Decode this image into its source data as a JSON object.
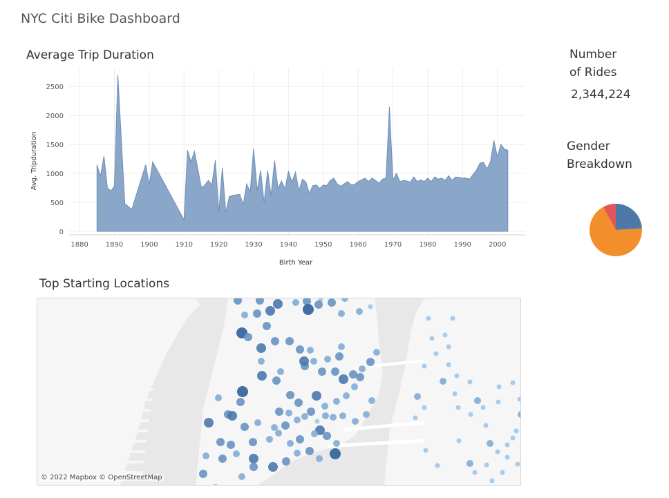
{
  "dashboard": {
    "title": "NYC Citi Bike Dashboard"
  },
  "chart_data": [
    {
      "type": "area",
      "title": "Average Trip Duration",
      "xlabel": "Birth Year",
      "ylabel": "Avg. Tripduration",
      "xlim": [
        1877,
        2008
      ],
      "ylim": [
        -60,
        2800
      ],
      "x_ticks": [
        1880,
        1890,
        1900,
        1910,
        1920,
        1930,
        1940,
        1950,
        1960,
        1970,
        1980,
        1990,
        2000
      ],
      "y_ticks": [
        0,
        500,
        1000,
        1500,
        2000,
        2500
      ],
      "grid": true,
      "color": "#8aa6c8",
      "x": [
        1885,
        1886,
        1887,
        1888,
        1889,
        1890,
        1891,
        1893,
        1895,
        1899,
        1900,
        1901,
        1910,
        1911,
        1912,
        1913,
        1915,
        1916,
        1917,
        1918,
        1919,
        1920,
        1921,
        1922,
        1923,
        1924,
        1926,
        1927,
        1928,
        1929,
        1930,
        1931,
        1932,
        1933,
        1934,
        1935,
        1936,
        1937,
        1938,
        1939,
        1940,
        1941,
        1942,
        1943,
        1944,
        1945,
        1946,
        1947,
        1948,
        1949,
        1950,
        1951,
        1952,
        1953,
        1954,
        1955,
        1956,
        1957,
        1958,
        1959,
        1960,
        1961,
        1962,
        1963,
        1964,
        1965,
        1966,
        1967,
        1968,
        1969,
        1970,
        1971,
        1972,
        1973,
        1974,
        1975,
        1976,
        1977,
        1978,
        1979,
        1980,
        1981,
        1982,
        1983,
        1984,
        1985,
        1986,
        1987,
        1988,
        1989,
        1990,
        1991,
        1992,
        1993,
        1994,
        1995,
        1996,
        1997,
        1998,
        1999,
        2000,
        2001,
        2002,
        2003
      ],
      "values": [
        1150,
        950,
        1300,
        750,
        700,
        780,
        2700,
        480,
        380,
        1150,
        800,
        1200,
        200,
        1400,
        1200,
        1380,
        750,
        800,
        880,
        800,
        1230,
        320,
        1100,
        330,
        600,
        620,
        640,
        460,
        820,
        680,
        1430,
        700,
        1050,
        500,
        1050,
        620,
        1220,
        740,
        870,
        730,
        1040,
        850,
        1020,
        700,
        900,
        850,
        660,
        790,
        800,
        740,
        800,
        790,
        880,
        920,
        820,
        780,
        820,
        860,
        800,
        810,
        860,
        890,
        920,
        860,
        920,
        880,
        830,
        900,
        920,
        2150,
        880,
        1000,
        860,
        880,
        870,
        850,
        940,
        860,
        890,
        860,
        920,
        860,
        940,
        900,
        920,
        880,
        960,
        880,
        940,
        930,
        920,
        920,
        900,
        980,
        1060,
        1180,
        1190,
        1080,
        1200,
        1570,
        1280,
        1500,
        1420,
        1400
      ]
    },
    {
      "type": "pie",
      "title": "Gender Breakdown",
      "slices": [
        {
          "value": 0.24,
          "color": "#4e79a7"
        },
        {
          "value": 0.68,
          "color": "#f28e2b"
        },
        {
          "value": 0.08,
          "color": "#e15759"
        }
      ]
    }
  ],
  "kpi": {
    "rides_label_line1": "Number",
    "rides_label_line2": "of Rides",
    "rides_value": "2,344,224"
  },
  "gender": {
    "title_line1": "Gender",
    "title_line2": "Breakdown"
  },
  "map": {
    "title": "Top Starting Locations",
    "attribution": "© 2022 Mapbox  © OpenStreetMap",
    "colors": {
      "water": "#e8e8e8",
      "land": "#f6f6f6",
      "dot_light": "#9fc6ea",
      "dot_dark": "#2f5f99"
    },
    "stations": [
      {
        "level": 3
      },
      {
        "level": 3
      },
      {
        "level": 4
      },
      {
        "level": 2
      },
      {
        "level": 3
      },
      {
        "level": 1
      },
      {
        "level": 3
      },
      {
        "level": 2
      },
      {
        "level": 2
      },
      {
        "level": 3
      },
      {
        "level": 4
      },
      {
        "level": 5
      },
      {
        "level": 3
      },
      {
        "level": 2
      },
      {
        "level": 2
      },
      {
        "level": 1
      },
      {
        "level": 3
      },
      {
        "level": 5
      },
      {
        "level": 3
      },
      {
        "level": 4
      },
      {
        "level": 3
      },
      {
        "level": 2
      },
      {
        "level": 3
      },
      {
        "level": 2
      },
      {
        "level": 4
      },
      {
        "level": 3
      },
      {
        "level": 5
      },
      {
        "level": 2
      },
      {
        "level": 3
      },
      {
        "level": 4
      },
      {
        "level": 3
      },
      {
        "level": 3
      },
      {
        "level": 4
      },
      {
        "level": 3
      },
      {
        "level": 2
      },
      {
        "level": 4
      },
      {
        "level": 3
      },
      {
        "level": 2
      },
      {
        "level": 3
      },
      {
        "level": 3
      },
      {
        "level": 4
      },
      {
        "level": 2
      },
      {
        "level": 3
      },
      {
        "level": 2
      },
      {
        "level": 2
      },
      {
        "level": 3
      },
      {
        "level": 3
      },
      {
        "level": 4
      },
      {
        "level": 3
      },
      {
        "level": 2
      },
      {
        "level": 3
      },
      {
        "level": 2
      },
      {
        "level": 4
      },
      {
        "level": 3
      },
      {
        "level": 3
      },
      {
        "level": 3
      },
      {
        "level": 2
      },
      {
        "level": 2
      },
      {
        "level": 1
      },
      {
        "level": 4
      },
      {
        "level": 3
      },
      {
        "level": 2
      },
      {
        "level": 5
      },
      {
        "level": 2
      },
      {
        "level": 3
      },
      {
        "level": 2
      },
      {
        "level": 3
      },
      {
        "level": 4
      },
      {
        "level": 3
      },
      {
        "level": 2
      },
      {
        "level": 2
      },
      {
        "level": 3
      },
      {
        "level": 2
      },
      {
        "level": 3
      },
      {
        "level": 2
      },
      {
        "level": 3
      },
      {
        "level": 2
      },
      {
        "level": 2
      },
      {
        "level": 2
      },
      {
        "level": 3
      },
      {
        "level": 2
      },
      {
        "level": 3
      },
      {
        "level": 2
      },
      {
        "level": 2
      },
      {
        "level": 2
      },
      {
        "level": 2
      },
      {
        "level": 3
      },
      {
        "level": 2
      },
      {
        "level": 2
      },
      {
        "level": 2
      },
      {
        "level": 2
      },
      {
        "level": 2
      },
      {
        "level": 2
      },
      {
        "level": 2
      },
      {
        "level": 3
      },
      {
        "level": 2
      },
      {
        "level": 1
      },
      {
        "level": 1
      },
      {
        "level": 1
      },
      {
        "level": 1
      },
      {
        "level": 1
      },
      {
        "level": 1
      },
      {
        "level": 1
      },
      {
        "level": 1
      },
      {
        "level": 2
      },
      {
        "level": 1
      },
      {
        "level": 2
      },
      {
        "level": 1
      },
      {
        "level": 1
      },
      {
        "level": 1
      },
      {
        "level": 1
      },
      {
        "level": 2
      },
      {
        "level": 1
      },
      {
        "level": 2
      },
      {
        "level": 1
      },
      {
        "level": 1
      },
      {
        "level": 1
      },
      {
        "level": 1
      },
      {
        "level": 2
      },
      {
        "level": 1
      },
      {
        "level": 1
      },
      {
        "level": 1
      },
      {
        "level": 1
      },
      {
        "level": 1
      },
      {
        "level": 1
      },
      {
        "level": 2
      },
      {
        "level": 1
      },
      {
        "level": 1
      },
      {
        "level": 1
      },
      {
        "level": 1
      },
      {
        "level": 1
      },
      {
        "level": 1
      },
      {
        "level": 1
      },
      {
        "level": 1
      },
      {
        "level": 1
      },
      {
        "level": 1
      }
    ]
  }
}
